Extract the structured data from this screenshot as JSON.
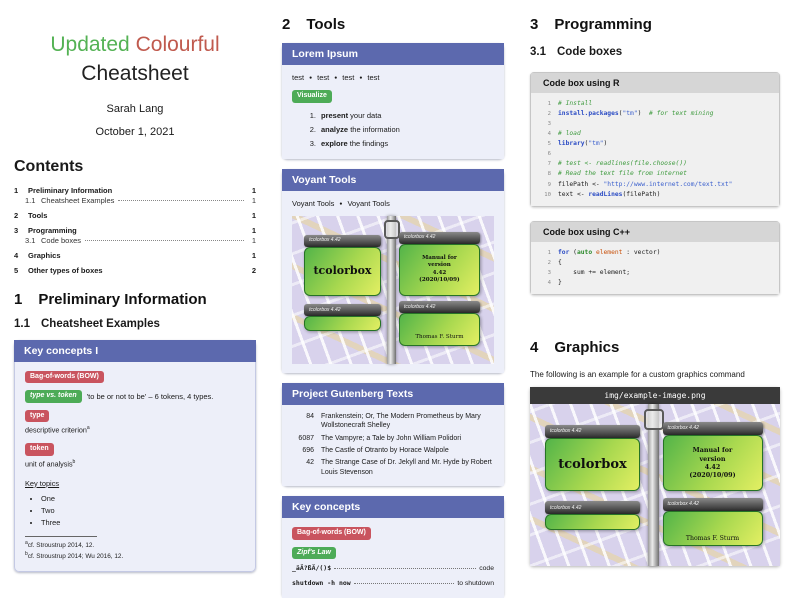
{
  "doc": {
    "title_word_green": "Updated",
    "title_word_red": "Colourful",
    "title_line2": "Cheatsheet",
    "author": "Sarah Lang",
    "date": "October 1, 2021"
  },
  "contents": {
    "heading": "Contents",
    "entries": [
      {
        "num": "1",
        "label": "Preliminary Information",
        "page": "1",
        "level": 1
      },
      {
        "num": "1.1",
        "label": "Cheatsheet Examples",
        "page": "1",
        "level": 2
      },
      {
        "num": "2",
        "label": "Tools",
        "page": "1",
        "level": 1
      },
      {
        "num": "3",
        "label": "Programming",
        "page": "1",
        "level": 1
      },
      {
        "num": "3.1",
        "label": "Code boxes",
        "page": "1",
        "level": 2
      },
      {
        "num": "4",
        "label": "Graphics",
        "page": "1",
        "level": 1
      },
      {
        "num": "5",
        "label": "Other types of boxes",
        "page": "2",
        "level": 1
      }
    ]
  },
  "sections": {
    "s1": {
      "num": "1",
      "title": "Preliminary Information"
    },
    "s11": {
      "num": "1.1",
      "title": "Cheatsheet Examples"
    },
    "s2": {
      "num": "2",
      "title": "Tools"
    },
    "s3": {
      "num": "3",
      "title": "Programming"
    },
    "s31": {
      "num": "3.1",
      "title": "Code boxes"
    },
    "s4": {
      "num": "4",
      "title": "Graphics"
    }
  },
  "key_concepts1": {
    "title": "Key concepts I",
    "badge_bow": "Bag-of-words (BOW)",
    "badge_type_token": "type vs. token",
    "type_token_text": "'to be or not to be' – 6 tokens, 4 types.",
    "badge_type": "type",
    "type_text": "descriptive criterion",
    "type_mark": "a",
    "badge_token": "token",
    "token_text": "unit of analysis",
    "token_mark": "b",
    "topics_heading": "Key topics",
    "topics": [
      "One",
      "Two",
      "Three"
    ],
    "footnotes": [
      {
        "mark": "a",
        "text": "cf. Stroustrup 2014, 12."
      },
      {
        "mark": "b",
        "text": "cf. Stroustrup 2014; Wu 2016, 12."
      }
    ]
  },
  "lorem": {
    "title": "Lorem Ipsum",
    "inline_items": [
      "test",
      "test",
      "test",
      "test"
    ],
    "badge": "Visualize",
    "steps": [
      {
        "bold": "present",
        "rest": " your data"
      },
      {
        "bold": "analyze",
        "rest": " the information"
      },
      {
        "bold": "explore",
        "rest": " the findings"
      }
    ]
  },
  "voyant": {
    "title": "Voyant Tools",
    "links": [
      "Voyant Tools",
      "Voyant Tools"
    ]
  },
  "gutenberg": {
    "title": "Project Gutenberg Texts",
    "rows": [
      {
        "id": "84",
        "text": "Frankenstein; Or, The Modern Prometheus by Mary Wollstonecraft Shelley"
      },
      {
        "id": "6087",
        "text": "The Vampyre; a Tale by John William Polidori"
      },
      {
        "id": "696",
        "text": "The Castle of Otranto by Horace Walpole"
      },
      {
        "id": "42",
        "text": "The Strange Case of Dr. Jekyll and Mr. Hyde by Robert Louis Stevenson"
      }
    ]
  },
  "key_concepts2": {
    "title": "Key concepts",
    "badge_bow": "Bag-of-words (BOW)",
    "badge_zipf": "Zipf's Law",
    "glossary": [
      {
        "term": "_äÄ?ßÄ/()$",
        "desc": "code"
      },
      {
        "term": "shutdown -h now",
        "desc": "to shutdown"
      }
    ]
  },
  "code_r": {
    "title": "Code box using R",
    "lines": [
      [
        {
          "t": "# Install",
          "c": "com"
        }
      ],
      [
        {
          "t": "install.packages",
          "c": "kw"
        },
        {
          "t": "(",
          "c": "pl"
        },
        {
          "t": "\"tm\"",
          "c": "str"
        },
        {
          "t": ")  ",
          "c": "pl"
        },
        {
          "t": "# for text mining",
          "c": "com"
        }
      ],
      [],
      [
        {
          "t": "# load",
          "c": "com"
        }
      ],
      [
        {
          "t": "library",
          "c": "kw"
        },
        {
          "t": "(",
          "c": "pl"
        },
        {
          "t": "\"tm\"",
          "c": "str"
        },
        {
          "t": ")",
          "c": "pl"
        }
      ],
      [],
      [
        {
          "t": "# test <- readlines(file.choose())",
          "c": "com"
        }
      ],
      [
        {
          "t": "# Read the text file from internet",
          "c": "com"
        }
      ],
      [
        {
          "t": "filePath ",
          "c": "pl"
        },
        {
          "t": "<- ",
          "c": "pl"
        },
        {
          "t": "\"http://www.internet.com/text.txt\"",
          "c": "str"
        }
      ],
      [
        {
          "t": "text ",
          "c": "pl"
        },
        {
          "t": "<- ",
          "c": "pl"
        },
        {
          "t": "readLines",
          "c": "kw"
        },
        {
          "t": "(filePath)",
          "c": "pl"
        }
      ]
    ]
  },
  "code_cpp": {
    "title": "Code box using C++",
    "lines": [
      [
        {
          "t": "for ",
          "c": "kw"
        },
        {
          "t": "(",
          "c": "pl"
        },
        {
          "t": "auto ",
          "c": "kw2"
        },
        {
          "t": "element",
          "c": "var"
        },
        {
          "t": " : vector)",
          "c": "pl"
        }
      ],
      [
        {
          "t": "{",
          "c": "pl"
        }
      ],
      [
        {
          "t": "    sum += element;",
          "c": "pl"
        }
      ],
      [
        {
          "t": "}",
          "c": "pl"
        }
      ]
    ]
  },
  "graphics": {
    "caption": "The following is an example for a custom graphics command",
    "figure_filename": "img/example-image.png"
  },
  "tcolorbox_image": {
    "bar_label": "tcolorbox 4.42",
    "main_label": "tcolorbox",
    "manual_lines": [
      "Manual for",
      "version",
      "4.42",
      "(2020/10/09)"
    ],
    "author_label": "Thomas F. Sturm"
  }
}
